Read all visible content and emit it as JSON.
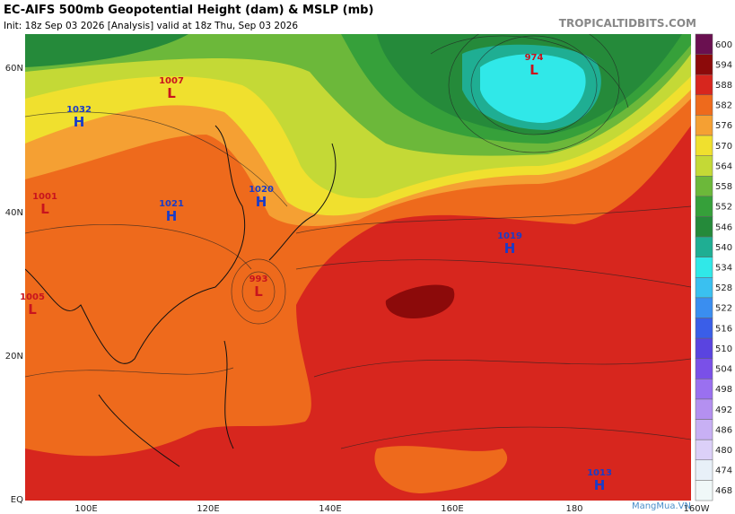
{
  "header": {
    "title": "EC-AIFS 500mb Geopotential Height (dam) & MSLP (mb)",
    "init": "Init: 18z Sep 03 2026   [Analysis]   valid at 18z Thu, Sep 03 2026",
    "source": "TROPICALTIDBITS.COM"
  },
  "lat_labels": [
    "60N",
    "40N",
    "20N",
    "EQ"
  ],
  "lon_labels": [
    "100E",
    "120E",
    "140E",
    "160E",
    "180",
    "160W"
  ],
  "colorbar": [
    {
      "value": 600,
      "color": "#6a1050"
    },
    {
      "value": 594,
      "color": "#8c0a0a"
    },
    {
      "value": 588,
      "color": "#d7261e"
    },
    {
      "value": 582,
      "color": "#ee6a1c"
    },
    {
      "value": 576,
      "color": "#f5a033"
    },
    {
      "value": 570,
      "color": "#f0e02e"
    },
    {
      "value": 564,
      "color": "#c4d936"
    },
    {
      "value": 558,
      "color": "#6cb83a"
    },
    {
      "value": 552,
      "color": "#36a03a"
    },
    {
      "value": 546,
      "color": "#258a3a"
    },
    {
      "value": 540,
      "color": "#1fae93"
    },
    {
      "value": 534,
      "color": "#30e8e8"
    },
    {
      "value": 528,
      "color": "#3ac0f0"
    },
    {
      "value": 522,
      "color": "#3a8ef0"
    },
    {
      "value": 516,
      "color": "#3a5ee8"
    },
    {
      "value": 510,
      "color": "#5a44e0"
    },
    {
      "value": 504,
      "color": "#7a50e8"
    },
    {
      "value": 498,
      "color": "#9a70f0"
    },
    {
      "value": 492,
      "color": "#b490f0"
    },
    {
      "value": 486,
      "color": "#c8b0f4"
    },
    {
      "value": 480,
      "color": "#dcd0f8"
    },
    {
      "value": 474,
      "color": "#e8f0f8"
    },
    {
      "value": 468,
      "color": "#f0f8f8"
    }
  ],
  "centers": [
    {
      "type": "H",
      "pressure": "1032"
    },
    {
      "type": "L",
      "pressure": "1007"
    },
    {
      "type": "H",
      "pressure": "1021"
    },
    {
      "type": "H",
      "pressure": "1020"
    },
    {
      "type": "L",
      "pressure": "1001"
    },
    {
      "type": "L",
      "pressure": "993"
    },
    {
      "type": "L",
      "pressure": "1005"
    },
    {
      "type": "L",
      "pressure": "974"
    },
    {
      "type": "H",
      "pressure": "1019"
    },
    {
      "type": "H",
      "pressure": "1013"
    }
  ],
  "watermark": "MangMua.VN"
}
